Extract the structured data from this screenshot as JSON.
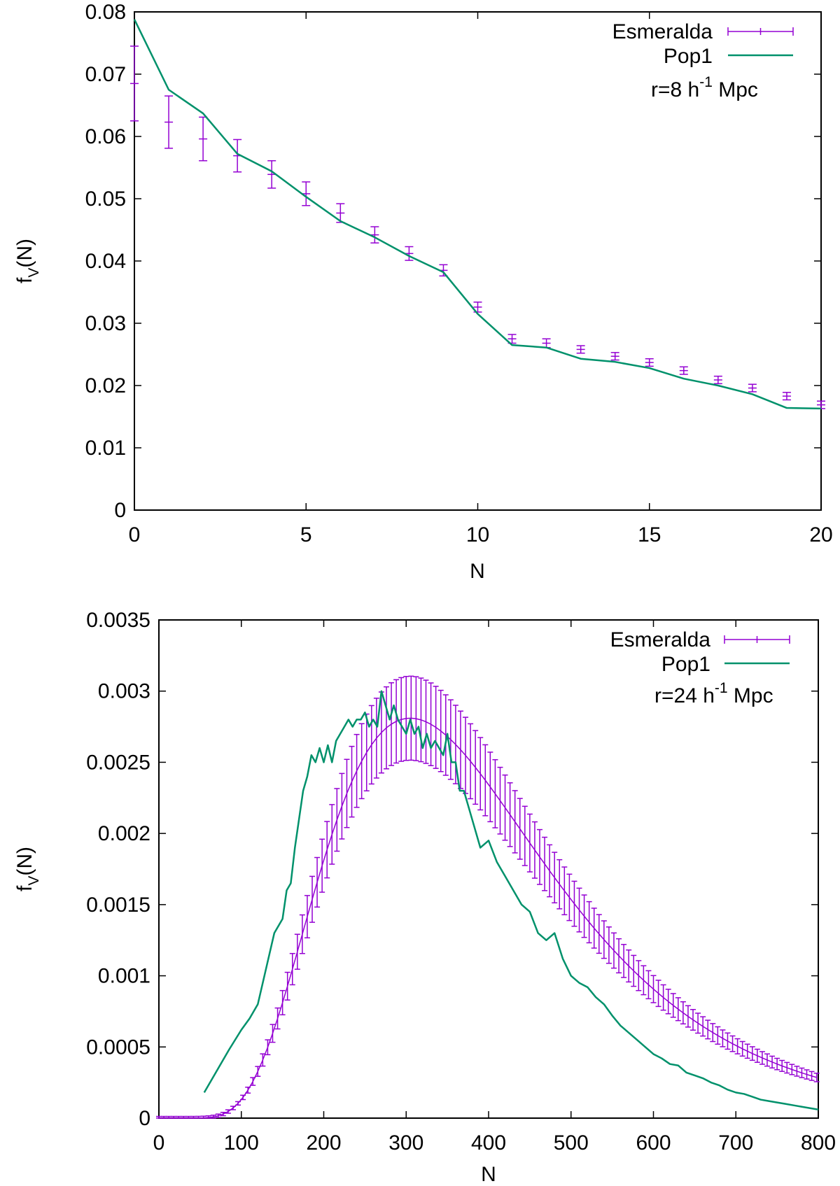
{
  "colors": {
    "esmeralda": "#9400d3",
    "pop1": "#00916b",
    "axis": "#000000"
  },
  "chart_data": [
    {
      "type": "line",
      "ylabel": "f",
      "ylabel_sub": "V",
      "ylabel_tail": "(N)",
      "xlabel": "N",
      "xlim": [
        0,
        20
      ],
      "ylim": [
        0,
        0.08
      ],
      "xticks": [
        0,
        5,
        10,
        15,
        20
      ],
      "xtick_labels": [
        "0",
        "5",
        "10",
        "15",
        "20"
      ],
      "yticks": [
        0,
        0.01,
        0.02,
        0.03,
        0.04,
        0.05,
        0.06,
        0.07,
        0.08
      ],
      "ytick_labels": [
        "0",
        "0.01",
        "0.02",
        "0.03",
        "0.04",
        "0.05",
        "0.06",
        "0.07",
        "0.08"
      ],
      "annotation": {
        "base": "r=8 h",
        "sup": "-1",
        "tail": " Mpc"
      },
      "legend": {
        "position": "top-right",
        "entries": [
          "Esmeralda",
          "Pop1"
        ]
      },
      "series": [
        {
          "name": "Esmeralda",
          "style": "errorbars",
          "x": [
            0,
            1,
            2,
            3,
            4,
            5,
            6,
            7,
            8,
            9,
            10,
            11,
            12,
            13,
            14,
            15,
            16,
            17,
            18,
            19,
            20
          ],
          "y": [
            0.0685,
            0.0623,
            0.0596,
            0.0569,
            0.0539,
            0.0508,
            0.0477,
            0.0442,
            0.0412,
            0.0385,
            0.0326,
            0.0275,
            0.0268,
            0.0258,
            0.0247,
            0.0237,
            0.0224,
            0.0209,
            0.0196,
            0.0183,
            0.0169
          ],
          "err": [
            0.006,
            0.0042,
            0.0035,
            0.0026,
            0.0022,
            0.0019,
            0.0015,
            0.0013,
            0.0011,
            0.0009,
            0.0008,
            0.0007,
            0.0007,
            0.0006,
            0.0006,
            0.0006,
            0.0006,
            0.0006,
            0.0006,
            0.0006,
            0.0006
          ]
        },
        {
          "name": "Pop1",
          "style": "line",
          "x": [
            0,
            1,
            2,
            3,
            4,
            5,
            6,
            7,
            8,
            9,
            10,
            11,
            12,
            13,
            14,
            15,
            16,
            17,
            18,
            19,
            20
          ],
          "y": [
            0.0788,
            0.0675,
            0.0637,
            0.0572,
            0.0544,
            0.0503,
            0.0464,
            0.0438,
            0.0408,
            0.0382,
            0.0315,
            0.0265,
            0.0261,
            0.0243,
            0.0238,
            0.0228,
            0.0211,
            0.02,
            0.0186,
            0.0164,
            0.0163
          ]
        }
      ]
    },
    {
      "type": "line",
      "ylabel": "f",
      "ylabel_sub": "V",
      "ylabel_tail": "(N)",
      "xlabel": "N",
      "xlim": [
        0,
        800
      ],
      "ylim": [
        0,
        0.0035
      ],
      "xticks": [
        0,
        100,
        200,
        300,
        400,
        500,
        600,
        700,
        800
      ],
      "xtick_labels": [
        "0",
        "100",
        "200",
        "300",
        "400",
        "500",
        "600",
        "700",
        "800"
      ],
      "yticks": [
        0,
        0.0005,
        0.001,
        0.0015,
        0.002,
        0.0025,
        0.003,
        0.0035
      ],
      "ytick_labels": [
        "0",
        "0.0005",
        "0.001",
        "0.0015",
        "0.002",
        "0.0025",
        "0.003",
        "0.0035"
      ],
      "annotation": {
        "base": "r=24 h",
        "sup": "-1",
        "tail": " Mpc"
      },
      "legend": {
        "position": "top-right",
        "entries": [
          "Esmeralda",
          "Pop1"
        ]
      },
      "series": [
        {
          "name": "Esmeralda",
          "style": "errorbars",
          "curve": {
            "type": "lognormal",
            "mu": 5.72,
            "sigma": 0.45,
            "scale": 0.00281
          },
          "error_fraction": 0.105,
          "x_start": 0,
          "x_end": 800,
          "x_step": 6
        },
        {
          "name": "Pop1",
          "style": "line",
          "x": [
            55,
            70,
            85,
            100,
            110,
            120,
            130,
            140,
            150,
            155,
            160,
            165,
            170,
            175,
            180,
            185,
            190,
            195,
            200,
            205,
            210,
            215,
            220,
            225,
            230,
            235,
            240,
            245,
            250,
            255,
            260,
            265,
            270,
            275,
            280,
            285,
            290,
            295,
            300,
            305,
            310,
            315,
            320,
            325,
            330,
            335,
            340,
            345,
            350,
            355,
            360,
            365,
            370,
            375,
            380,
            390,
            400,
            410,
            420,
            430,
            440,
            450,
            460,
            470,
            480,
            490,
            500,
            510,
            520,
            530,
            540,
            550,
            560,
            570,
            580,
            590,
            600,
            610,
            620,
            630,
            640,
            650,
            660,
            670,
            680,
            690,
            700,
            710,
            720,
            730,
            740,
            750,
            760,
            770,
            780,
            790,
            800
          ],
          "y": [
            0.00018,
            0.00033,
            0.00048,
            0.00062,
            0.0007,
            0.0008,
            0.00105,
            0.0013,
            0.0014,
            0.0016,
            0.00165,
            0.0019,
            0.0021,
            0.0023,
            0.0024,
            0.00255,
            0.0025,
            0.0026,
            0.0025,
            0.00262,
            0.0025,
            0.00265,
            0.0027,
            0.00275,
            0.0028,
            0.00275,
            0.0028,
            0.0028,
            0.00285,
            0.00275,
            0.0028,
            0.00275,
            0.003,
            0.0029,
            0.0028,
            0.0029,
            0.0028,
            0.00275,
            0.0027,
            0.0028,
            0.0027,
            0.00275,
            0.0026,
            0.0027,
            0.0026,
            0.00265,
            0.0026,
            0.00255,
            0.0027,
            0.0025,
            0.0025,
            0.0023,
            0.0023,
            0.0022,
            0.0021,
            0.0019,
            0.00195,
            0.0018,
            0.0017,
            0.0016,
            0.0015,
            0.00145,
            0.0013,
            0.00125,
            0.0013,
            0.00112,
            0.001,
            0.00095,
            0.00092,
            0.00085,
            0.0008,
            0.00072,
            0.00065,
            0.0006,
            0.00055,
            0.0005,
            0.00045,
            0.00042,
            0.00038,
            0.00037,
            0.00032,
            0.0003,
            0.00028,
            0.00025,
            0.00023,
            0.0002,
            0.00018,
            0.00017,
            0.00015,
            0.00013,
            0.00012,
            0.00011,
            0.0001,
            9e-05,
            8e-05,
            7e-05,
            6e-05
          ]
        }
      ]
    }
  ]
}
